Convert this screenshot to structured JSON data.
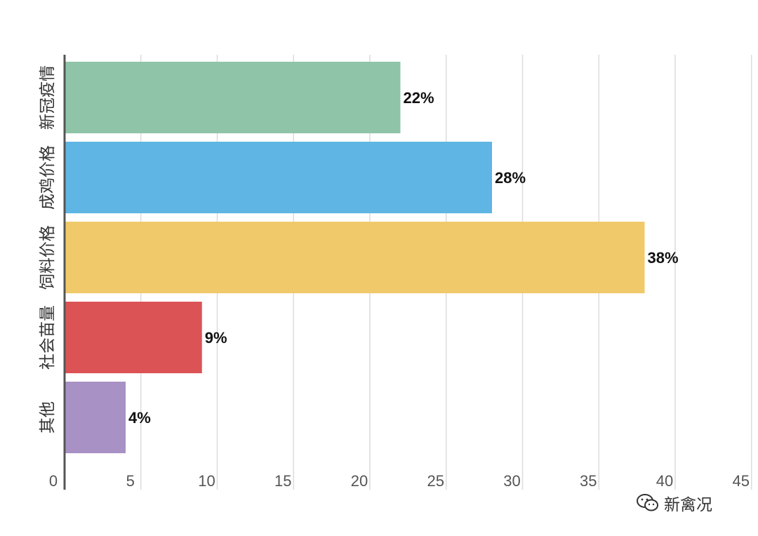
{
  "chart_data": {
    "type": "bar",
    "orientation": "horizontal",
    "categories": [
      "新冠疫情",
      "成鸡价格",
      "饲料价格",
      "社会苗量",
      "其他"
    ],
    "values": [
      22,
      28,
      38,
      9,
      4
    ],
    "value_labels": [
      "22%",
      "28%",
      "38%",
      "9%",
      "4%"
    ],
    "colors": [
      "#8fc4a8",
      "#5fb5e3",
      "#f0c96a",
      "#db5355",
      "#a891c4"
    ],
    "x_ticks": [
      "0",
      "5",
      "10",
      "15",
      "20",
      "25",
      "30",
      "35",
      "40",
      "45"
    ],
    "xlim": [
      0,
      45
    ],
    "grid": true,
    "title": "",
    "xlabel": "",
    "ylabel": ""
  },
  "watermark": {
    "text": "新禽况",
    "icon": "wechat-icon"
  }
}
